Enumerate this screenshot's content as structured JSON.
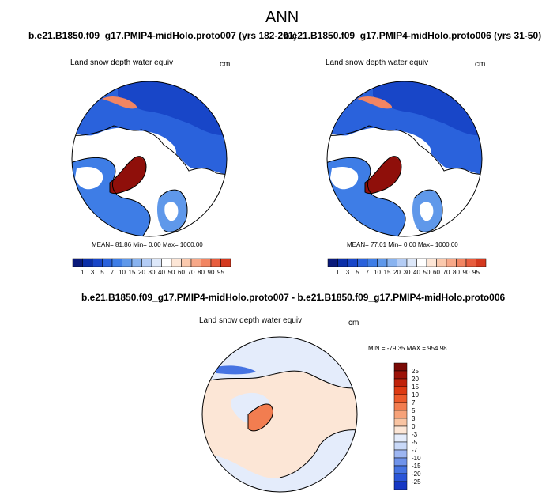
{
  "page": {
    "title": "ANN"
  },
  "panels": [
    {
      "case": "b.e21.B1850.f09_g17.PMIP4-midHolo.proto007 (yrs 182-201)",
      "variable": "Land snow depth water equiv",
      "units": "cm",
      "stats_text": "MEAN=  81.86  Min=   0.00  Max= 1000.00"
    },
    {
      "case": "b.e21.B1850.f09_g17.PMIP4-midHolo.proto006 (yrs 31-50)",
      "variable": "Land snow depth water equiv",
      "units": "cm",
      "stats_text": "MEAN=  77.01  Min=   0.00  Max= 1000.00"
    }
  ],
  "diff": {
    "title": "b.e21.B1850.f09_g17.PMIP4-midHolo.proto007 - b.e21.B1850.f09_g17.PMIP4-midHolo.proto006",
    "variable": "Land snow depth water equiv",
    "units": "cm",
    "stats_text": "MIN = -79.35 MAX = 954.98"
  },
  "colors": {
    "ocean": "#ffffff",
    "coast": "#000000",
    "abs_palette": [
      "#0a1a7a",
      "#0b2fa8",
      "#1846c8",
      "#2a62dc",
      "#3e7de6",
      "#5f98ea",
      "#88b3f0",
      "#b3ccf5",
      "#dde8fa",
      "#ffffff",
      "#fde6d6",
      "#fbc9ad",
      "#f7a888",
      "#f28562",
      "#e85d3e",
      "#d4391f",
      "#b51e10",
      "#8f0f0a",
      "#6b0808"
    ],
    "diff_palette": [
      "#0a0f6e",
      "#0b1fa0",
      "#1637c4",
      "#2a55d8",
      "#4573e2",
      "#6f93ea",
      "#9db6f2",
      "#c9d9f8",
      "#e4ecfb",
      "#fce6d6",
      "#f9c4a2",
      "#f6a279",
      "#f27d50",
      "#ec5a2b",
      "#dd3a12",
      "#c0220a",
      "#9c1208",
      "#7a0a06"
    ]
  },
  "chart_data": [
    {
      "type": "heatmap",
      "projection": "polar stereographic (north pole)",
      "title": "b.e21.B1850.f09_g17.PMIP4-midHolo.proto007 (yrs 182-201)",
      "variable": "Land snow depth water equiv",
      "units": "cm",
      "mean": 81.86,
      "min": 0.0,
      "max": 1000.0,
      "colorbar_levels": [
        1,
        3,
        5,
        7,
        10,
        15,
        20,
        30,
        40,
        50,
        60,
        70,
        80,
        90,
        95
      ]
    },
    {
      "type": "heatmap",
      "projection": "polar stereographic (north pole)",
      "title": "b.e21.B1850.f09_g17.PMIP4-midHolo.proto006 (yrs 31-50)",
      "variable": "Land snow depth water equiv",
      "units": "cm",
      "mean": 77.01,
      "min": 0.0,
      "max": 1000.0,
      "colorbar_levels": [
        1,
        3,
        5,
        7,
        10,
        15,
        20,
        30,
        40,
        50,
        60,
        70,
        80,
        90,
        95
      ]
    },
    {
      "type": "heatmap",
      "projection": "polar stereographic (north pole)",
      "title": "b.e21.B1850.f09_g17.PMIP4-midHolo.proto007 - b.e21.B1850.f09_g17.PMIP4-midHolo.proto006",
      "variable": "Land snow depth water equiv",
      "units": "cm",
      "min": -79.35,
      "max": 954.98,
      "colorbar_levels": [
        25,
        20,
        15,
        10,
        7,
        5,
        3,
        0,
        -3,
        -5,
        -7,
        -10,
        -15,
        -20,
        -25
      ]
    }
  ]
}
